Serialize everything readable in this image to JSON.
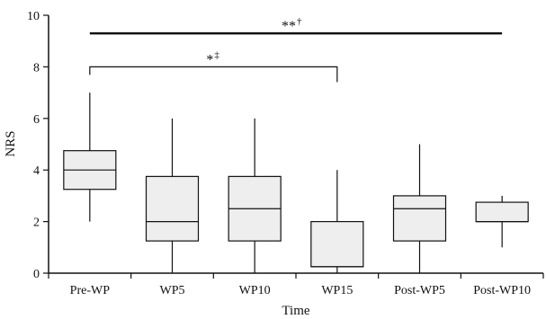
{
  "chart_data": {
    "type": "box",
    "xlabel": "Time",
    "ylabel": "NRS",
    "ylim": [
      0,
      10
    ],
    "yticks": [
      0,
      2,
      4,
      6,
      8,
      10
    ],
    "grid": false,
    "categories": [
      "Pre-WP",
      "WP5",
      "WP10",
      "WP15",
      "Post-WP5",
      "Post-WP10"
    ],
    "boxes": [
      {
        "min": 2,
        "q1": 3.25,
        "median": 4,
        "q3": 4.75,
        "max": 7
      },
      {
        "min": 0,
        "q1": 1.25,
        "median": 2,
        "q3": 3.75,
        "max": 6
      },
      {
        "min": 0,
        "q1": 1.25,
        "median": 2.5,
        "q3": 3.75,
        "max": 6
      },
      {
        "min": 0,
        "q1": 0.25,
        "median": 0.25,
        "q3": 2,
        "max": 4
      },
      {
        "min": 0,
        "q1": 1.25,
        "median": 2.5,
        "q3": 3,
        "max": 5
      },
      {
        "min": 1,
        "q1": 2,
        "median": 2,
        "q3": 2.75,
        "max": 3
      }
    ],
    "box_fill": "#eeeeee",
    "line_color": "#111111",
    "annotations": [
      {
        "from": 0,
        "to": 5,
        "level": 9.3,
        "label": "**",
        "superscript": "†",
        "style": "bar"
      },
      {
        "from": 0,
        "to": 3,
        "level": 8.0,
        "label": "*",
        "superscript": "‡",
        "style": "bracket"
      }
    ]
  }
}
